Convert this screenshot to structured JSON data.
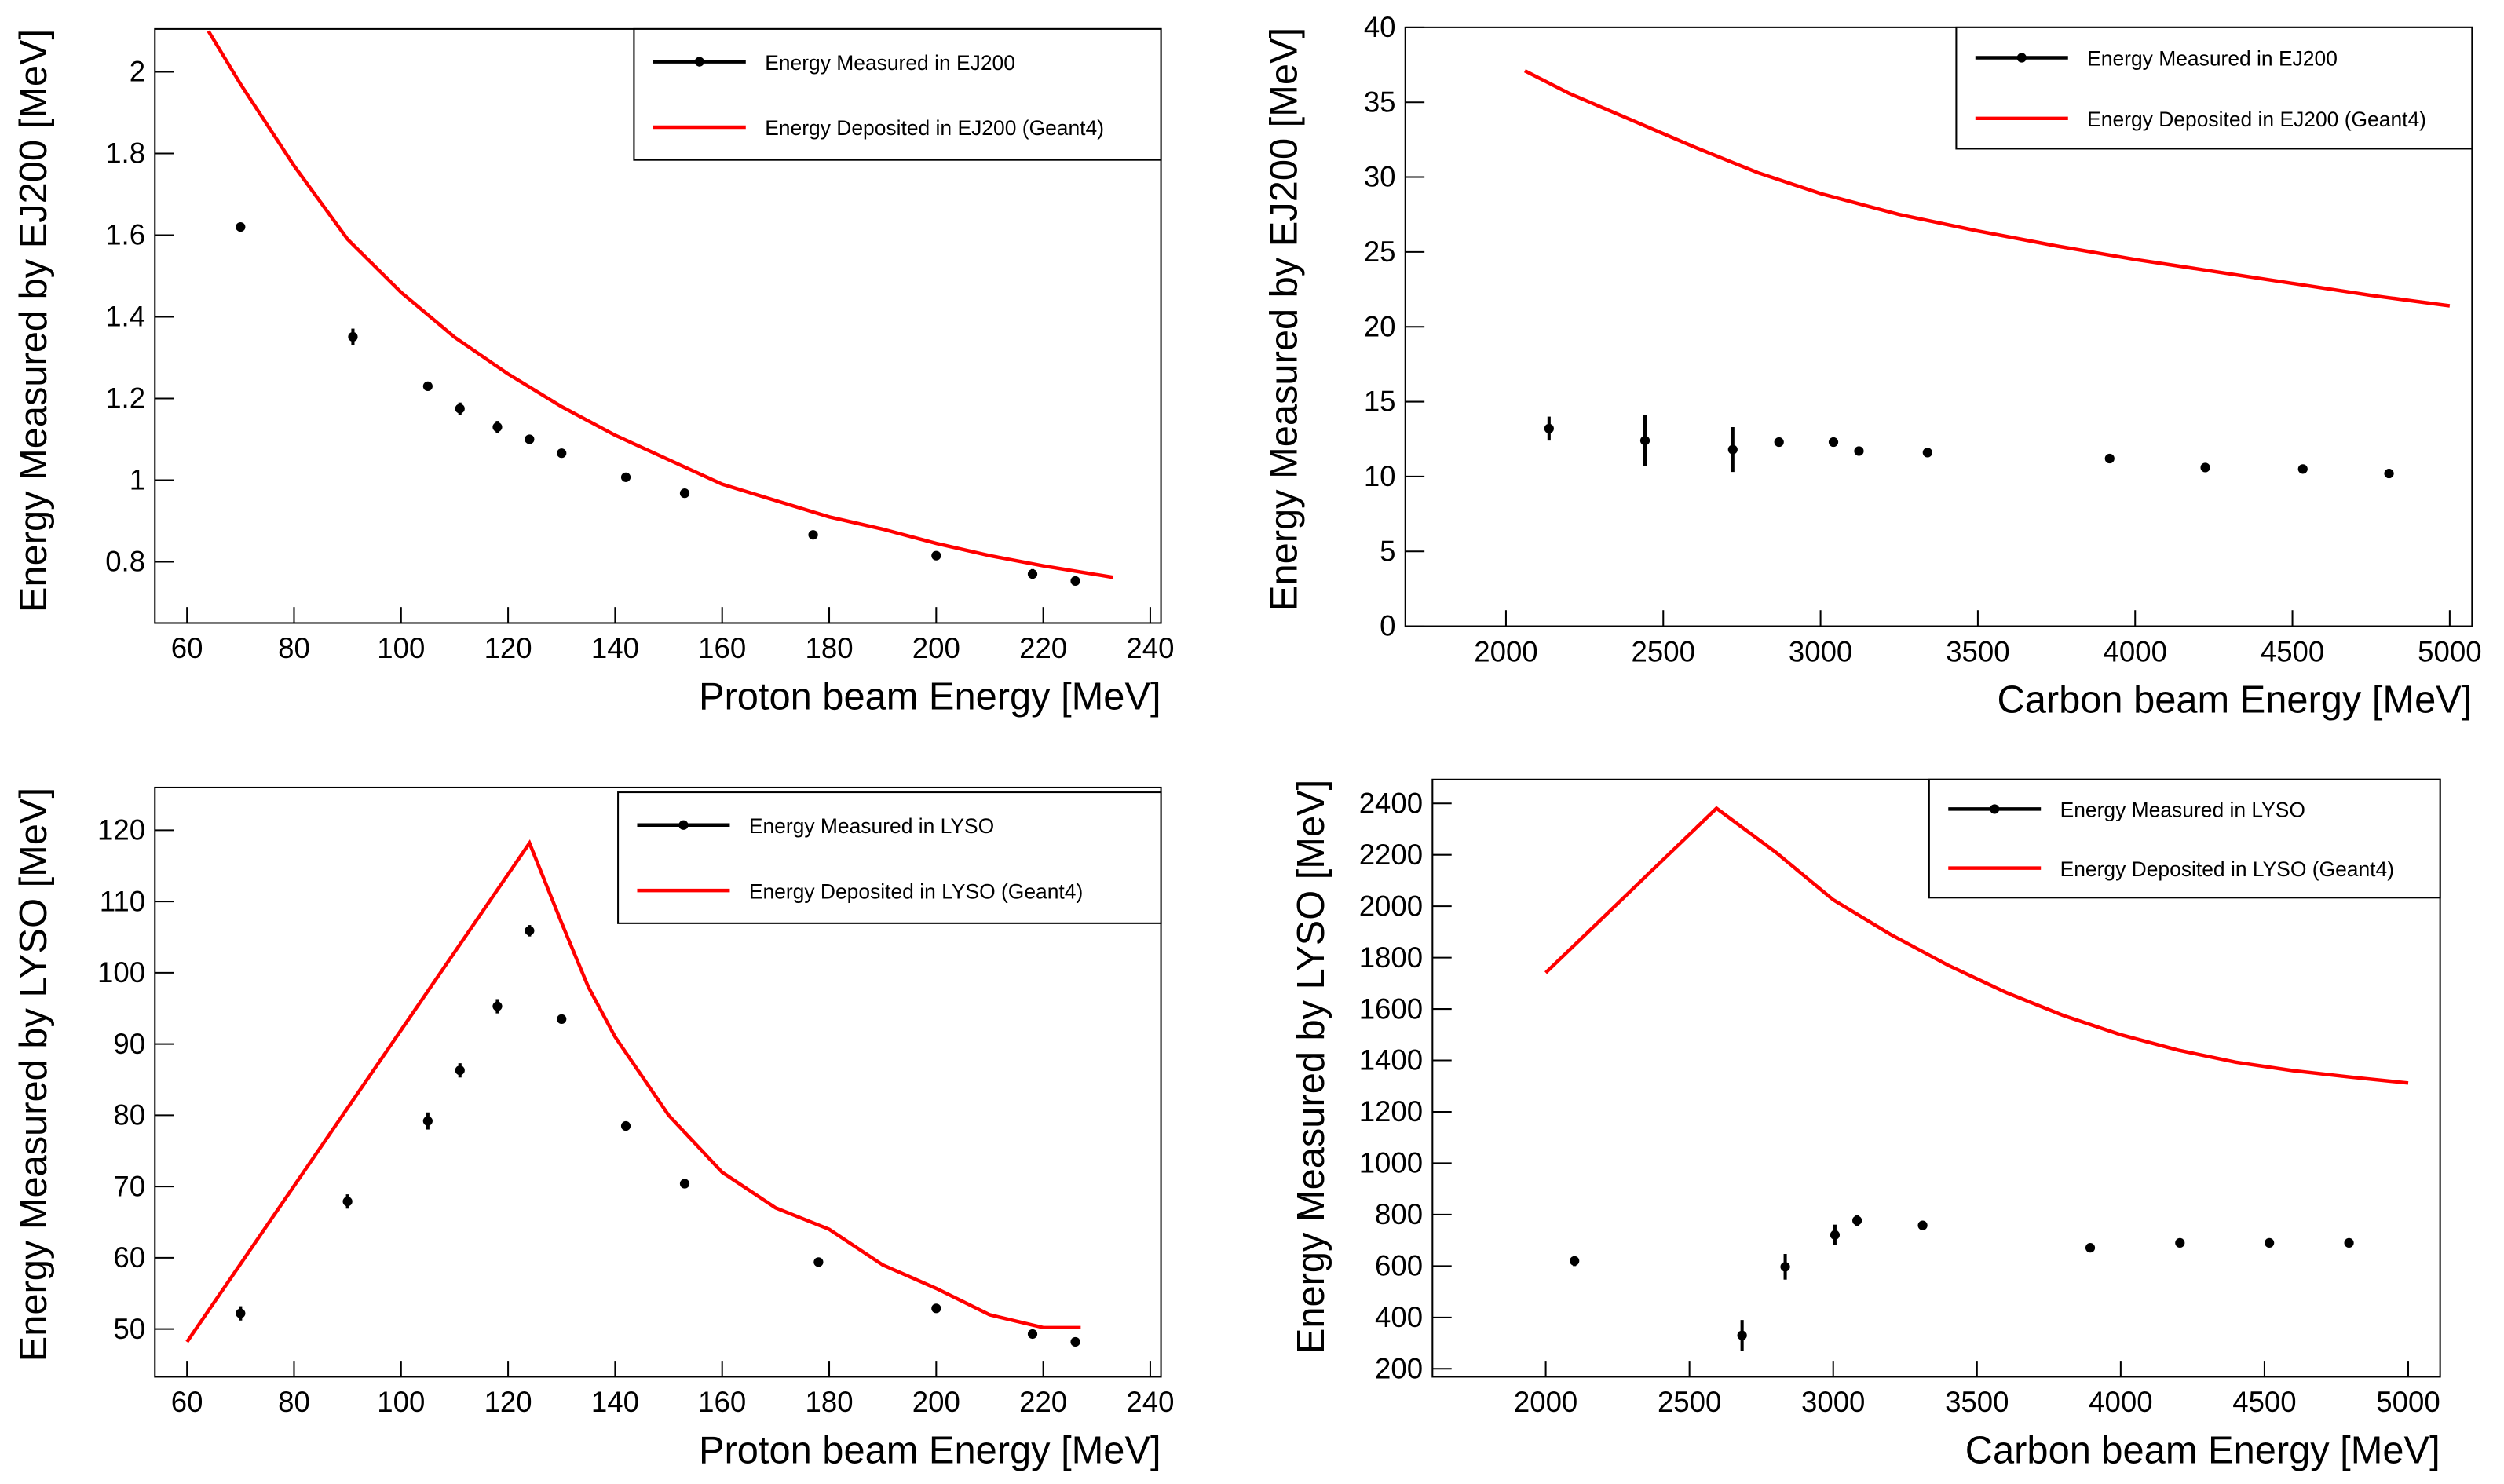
{
  "chart_data": [
    {
      "type": "scatter",
      "xlabel": "Proton beam Energy [MeV]",
      "ylabel": "Energy Measured by EJ200 [MeV]",
      "xlim": [
        54,
        242
      ],
      "xticks": [
        60,
        80,
        100,
        120,
        140,
        160,
        180,
        200,
        220,
        240
      ],
      "ylim": [
        0.65,
        2.105
      ],
      "yticks": [
        0.8,
        1,
        1.2,
        1.4,
        1.6,
        1.8,
        2
      ],
      "legend": "top-right",
      "series": [
        {
          "name": "Energy Measured in EJ200",
          "type": "scatter",
          "color": "#000000",
          "x": [
            70,
            91,
            105,
            111,
            118,
            124,
            130,
            142,
            153,
            177,
            200,
            218,
            226
          ],
          "values": [
            1.62,
            1.351,
            1.23,
            1.175,
            1.13,
            1.1,
            1.066,
            1.007,
            0.968,
            0.866,
            0.815,
            0.77,
            0.753
          ],
          "errors": [
            0.01,
            0.02,
            0.01,
            0.015,
            0.015,
            0.01,
            0.01,
            0.01,
            0.01,
            0.01,
            0.01,
            0.012,
            0.01
          ]
        },
        {
          "name": "Energy Deposited in EJ200 (Geant4)",
          "type": "line",
          "color": "#ff0000",
          "x": [
            64,
            70,
            80,
            90,
            100,
            110,
            120,
            130,
            140,
            150,
            160,
            170,
            180,
            190,
            200,
            210,
            220,
            233
          ],
          "values": [
            2.1,
            1.97,
            1.77,
            1.59,
            1.46,
            1.35,
            1.26,
            1.18,
            1.11,
            1.05,
            0.99,
            0.95,
            0.91,
            0.88,
            0.845,
            0.815,
            0.79,
            0.762
          ]
        }
      ]
    },
    {
      "type": "scatter",
      "xlabel": "Carbon beam Energy [MeV]",
      "ylabel": "Energy Measured by EJ200 [MeV]",
      "xlim": [
        1680,
        5071
      ],
      "xticks": [
        2000,
        2500,
        3000,
        3500,
        4000,
        4500,
        5000
      ],
      "ylim": [
        0,
        40
      ],
      "yticks": [
        0,
        5,
        10,
        15,
        20,
        25,
        30,
        35,
        40
      ],
      "legend": "top-right",
      "series": [
        {
          "name": "Energy Measured in EJ200",
          "type": "scatter",
          "color": "#000000",
          "x": [
            2137,
            2442,
            2721,
            2868,
            3041,
            3122,
            3340,
            3919,
            4223,
            4533,
            4807
          ],
          "values": [
            13.2,
            12.4,
            11.8,
            12.3,
            12.3,
            11.7,
            11.6,
            11.2,
            10.6,
            10.5,
            10.2
          ],
          "errors": [
            0.8,
            1.7,
            1.5,
            0.3,
            0.3,
            0.3,
            0.3,
            0.3,
            0.3,
            0.3,
            0.3
          ]
        },
        {
          "name": "Energy Deposited in EJ200 (Geant4)",
          "type": "line",
          "color": "#ff0000",
          "x": [
            2060,
            2200,
            2400,
            2600,
            2800,
            3000,
            3250,
            3500,
            3750,
            4000,
            4250,
            4500,
            4750,
            5000
          ],
          "values": [
            37.1,
            35.6,
            33.8,
            32.0,
            30.3,
            28.9,
            27.5,
            26.4,
            25.4,
            24.5,
            23.7,
            22.9,
            22.1,
            21.4
          ]
        }
      ]
    },
    {
      "type": "scatter",
      "xlabel": "Proton beam Energy [MeV]",
      "ylabel": "Energy Measured by LYSO [MeV]",
      "xlim": [
        54,
        242
      ],
      "xticks": [
        60,
        80,
        100,
        120,
        140,
        160,
        180,
        200,
        220,
        240
      ],
      "ylim": [
        43.3,
        126
      ],
      "yticks": [
        50,
        60,
        70,
        80,
        90,
        100,
        110,
        120
      ],
      "legend": "top-right",
      "series": [
        {
          "name": "Energy Measured in LYSO",
          "type": "scatter",
          "color": "#000000",
          "x": [
            70,
            90,
            105,
            111,
            118,
            124,
            130,
            142,
            153,
            178,
            200,
            218,
            226
          ],
          "values": [
            52.2,
            67.9,
            79.2,
            86.3,
            95.3,
            105.9,
            93.5,
            78.5,
            70.4,
            59.4,
            52.9,
            49.3,
            48.2
          ],
          "errors": [
            1,
            1,
            1.2,
            1,
            1,
            0.8,
            0.5,
            0.5,
            0.5,
            0.6,
            0.5,
            0.5,
            0.5
          ]
        },
        {
          "name": "Energy Deposited in LYSO (Geant4)",
          "type": "line",
          "color": "#ff0000",
          "x": [
            60,
            124,
            130,
            135,
            140,
            150,
            160,
            170,
            180,
            190,
            200,
            210,
            220,
            227
          ],
          "values": [
            48.2,
            118.2,
            107,
            98,
            91,
            80,
            72,
            67,
            64,
            59,
            55.7,
            52,
            50.2,
            50.2
          ]
        }
      ]
    },
    {
      "type": "scatter",
      "xlabel": "Carbon beam Energy [MeV]",
      "ylabel": "Energy Measured by LYSO [MeV]",
      "xlim": [
        1606,
        5111
      ],
      "xticks": [
        2000,
        2500,
        3000,
        3500,
        4000,
        4500,
        5000
      ],
      "ylim": [
        169,
        2493
      ],
      "yticks": [
        200,
        400,
        600,
        800,
        1000,
        1200,
        1400,
        1600,
        1800,
        2000,
        2200,
        2400
      ],
      "legend": "top-right",
      "series": [
        {
          "name": "Energy Measured in LYSO",
          "type": "scatter",
          "color": "#000000",
          "x": [
            2100,
            2683,
            2833,
            3006,
            3083,
            3311,
            3894,
            4206,
            4517,
            4794
          ],
          "values": [
            620,
            330,
            597,
            721,
            777,
            758,
            671,
            690,
            690,
            690
          ],
          "errors": [
            20,
            60,
            50,
            40,
            20,
            12,
            12,
            12,
            12,
            12
          ]
        },
        {
          "name": "Energy Deposited in LYSO (Geant4)",
          "type": "line",
          "color": "#ff0000",
          "x": [
            2000,
            2594,
            2800,
            3000,
            3200,
            3400,
            3600,
            3800,
            4000,
            4200,
            4400,
            4600,
            4800,
            5000
          ],
          "values": [
            1741,
            2381,
            2210,
            2025,
            1890,
            1770,
            1665,
            1575,
            1500,
            1440,
            1393,
            1360,
            1335,
            1312
          ]
        }
      ]
    }
  ]
}
